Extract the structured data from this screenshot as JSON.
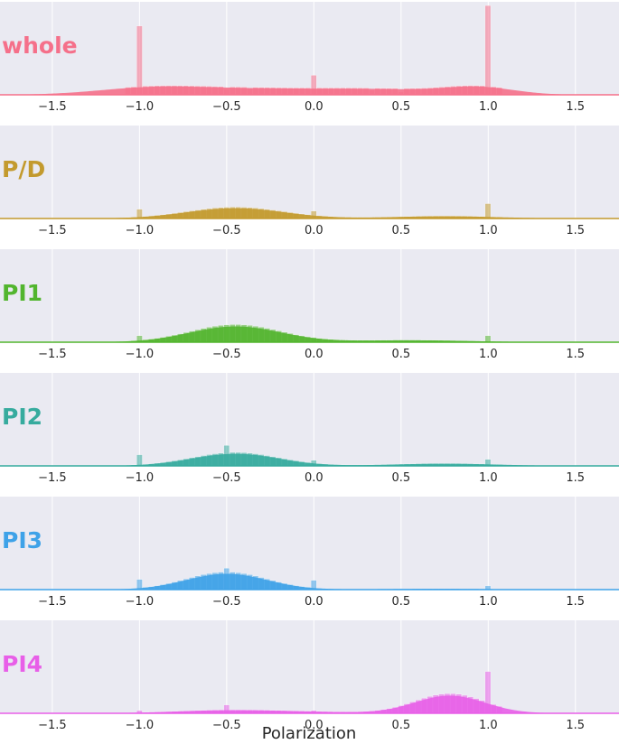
{
  "chart_data": {
    "type": "area",
    "xlabel": "Polarization",
    "xlim": [
      -1.8,
      1.75
    ],
    "xticks": [
      -1.5,
      -1.0,
      -0.5,
      0.0,
      0.5,
      1.0,
      1.5
    ],
    "xtick_labels": [
      "−1.5",
      "−1.0",
      "−0.5",
      "0.0",
      "0.5",
      "1.0",
      "1.5"
    ],
    "grid": true,
    "bin_width": 0.0333,
    "series": [
      {
        "name": "whole",
        "color": "#f5708a",
        "kde_peaks": [
          {
            "mu": -0.95,
            "sigma": 0.3,
            "w": 0.9
          },
          {
            "mu": -0.35,
            "sigma": 0.4,
            "w": 0.8
          },
          {
            "mu": 0.4,
            "sigma": 0.35,
            "w": 0.7
          },
          {
            "mu": 0.95,
            "sigma": 0.2,
            "w": 1.0
          }
        ],
        "kde_max": 0.09,
        "spikes": [
          {
            "x": -1.0,
            "h": 0.74
          },
          {
            "x": 0.0,
            "h": 0.21
          },
          {
            "x": 1.0,
            "h": 0.96
          },
          {
            "x": -0.5,
            "h": 0.06
          },
          {
            "x": -0.35,
            "h": 0.07
          },
          {
            "x": 0.33,
            "h": 0.05
          },
          {
            "x": 0.5,
            "h": 0.03
          }
        ]
      },
      {
        "name": "P/D",
        "color": "#c39a2e",
        "kde_peaks": [
          {
            "mu": -0.45,
            "sigma": 0.28,
            "w": 1.0
          },
          {
            "mu": 0.75,
            "sigma": 0.3,
            "w": 0.22
          }
        ],
        "kde_max": 0.11,
        "spikes": [
          {
            "x": -1.0,
            "h": 0.1
          },
          {
            "x": 0.0,
            "h": 0.08
          },
          {
            "x": 1.0,
            "h": 0.16
          }
        ]
      },
      {
        "name": "PI1",
        "color": "#52b52e",
        "kde_peaks": [
          {
            "mu": -0.45,
            "sigma": 0.26,
            "w": 1.0
          },
          {
            "mu": 0.55,
            "sigma": 0.35,
            "w": 0.12
          }
        ],
        "kde_max": 0.17,
        "spikes": [
          {
            "x": -1.0,
            "h": 0.07
          },
          {
            "x": 0.0,
            "h": 0.05
          },
          {
            "x": 1.0,
            "h": 0.07
          }
        ]
      },
      {
        "name": "PI2",
        "color": "#36ab9e",
        "kde_peaks": [
          {
            "mu": -0.45,
            "sigma": 0.25,
            "w": 1.0
          },
          {
            "mu": 0.75,
            "sigma": 0.3,
            "w": 0.18
          }
        ],
        "kde_max": 0.13,
        "spikes": [
          {
            "x": -1.0,
            "h": 0.12
          },
          {
            "x": 0.0,
            "h": 0.06
          },
          {
            "x": 1.0,
            "h": 0.07
          },
          {
            "x": -0.5,
            "h": 0.22
          }
        ]
      },
      {
        "name": "PI3",
        "color": "#3ea2e8",
        "kde_peaks": [
          {
            "mu": -0.5,
            "sigma": 0.23,
            "w": 1.0
          },
          {
            "mu": 0.7,
            "sigma": 0.35,
            "w": 0.05
          }
        ],
        "kde_max": 0.17,
        "spikes": [
          {
            "x": -1.0,
            "h": 0.11
          },
          {
            "x": 0.0,
            "h": 0.1
          },
          {
            "x": 1.0,
            "h": 0.04
          },
          {
            "x": -0.5,
            "h": 0.23
          }
        ]
      },
      {
        "name": "PI4",
        "color": "#e85fe8",
        "kde_peaks": [
          {
            "mu": -0.5,
            "sigma": 0.3,
            "w": 0.16
          },
          {
            "mu": 0.0,
            "sigma": 0.3,
            "w": 0.06
          },
          {
            "mu": 0.78,
            "sigma": 0.2,
            "w": 1.0
          }
        ],
        "kde_max": 0.19,
        "spikes": [
          {
            "x": -1.0,
            "h": 0.03
          },
          {
            "x": 0.0,
            "h": 0.03
          },
          {
            "x": 1.0,
            "h": 0.45
          },
          {
            "x": -0.5,
            "h": 0.09
          }
        ]
      }
    ]
  }
}
